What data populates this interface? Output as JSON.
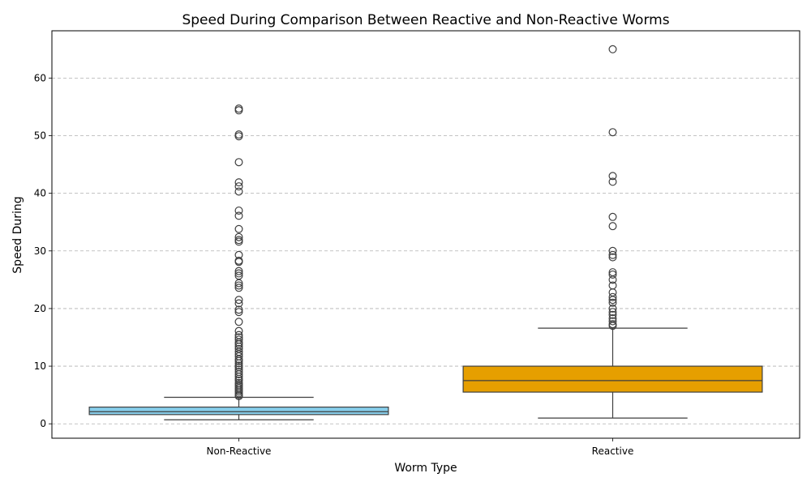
{
  "chart_data": {
    "type": "box",
    "title": "Speed During Comparison Between Reactive and Non-Reactive Worms",
    "xlabel": "Worm Type",
    "ylabel": "Speed During",
    "ylim": [
      -2.5,
      68.2
    ],
    "yticks": [
      0,
      10,
      20,
      30,
      40,
      50,
      60
    ],
    "grid": "y-dashed",
    "categories": [
      "Non-Reactive",
      "Reactive"
    ],
    "boxes": [
      {
        "category": "Non-Reactive",
        "color": "#87CEEB",
        "whisker_low": 0.7,
        "q1": 1.6,
        "median": 2.1,
        "q3": 2.9,
        "whisker_high": 4.6,
        "outliers": [
          54.7,
          54.4,
          50.2,
          49.9,
          45.4,
          41.9,
          41.2,
          40.3,
          37.0,
          36.1,
          33.8,
          32.4,
          31.9,
          31.6,
          29.3,
          28.3,
          28.1,
          26.5,
          26.1,
          25.7,
          24.4,
          24.0,
          23.6,
          21.5,
          20.9,
          19.8,
          19.4,
          17.7,
          16.1,
          15.4,
          15.0,
          14.6,
          14.1,
          13.8,
          13.4,
          13.0,
          12.5,
          12.1,
          11.7,
          11.2,
          10.9,
          10.5,
          10.1,
          9.8,
          9.4,
          9.0,
          8.6,
          8.2,
          7.8,
          7.5,
          7.1,
          6.8,
          6.5,
          6.2,
          5.9,
          5.6,
          5.3,
          5.0,
          4.8
        ]
      },
      {
        "category": "Reactive",
        "color": "#E69F00",
        "whisker_low": 1.0,
        "q1": 5.5,
        "median": 7.5,
        "q3": 10.0,
        "whisker_high": 16.6,
        "outliers": [
          65.0,
          50.6,
          43.0,
          42.0,
          35.9,
          34.3,
          30.0,
          29.3,
          28.9,
          26.3,
          25.9,
          25.0,
          24.0,
          22.8,
          22.0,
          21.5,
          21.0,
          20.0,
          19.4,
          18.9,
          18.3,
          17.8,
          17.3,
          17.0
        ]
      }
    ]
  }
}
